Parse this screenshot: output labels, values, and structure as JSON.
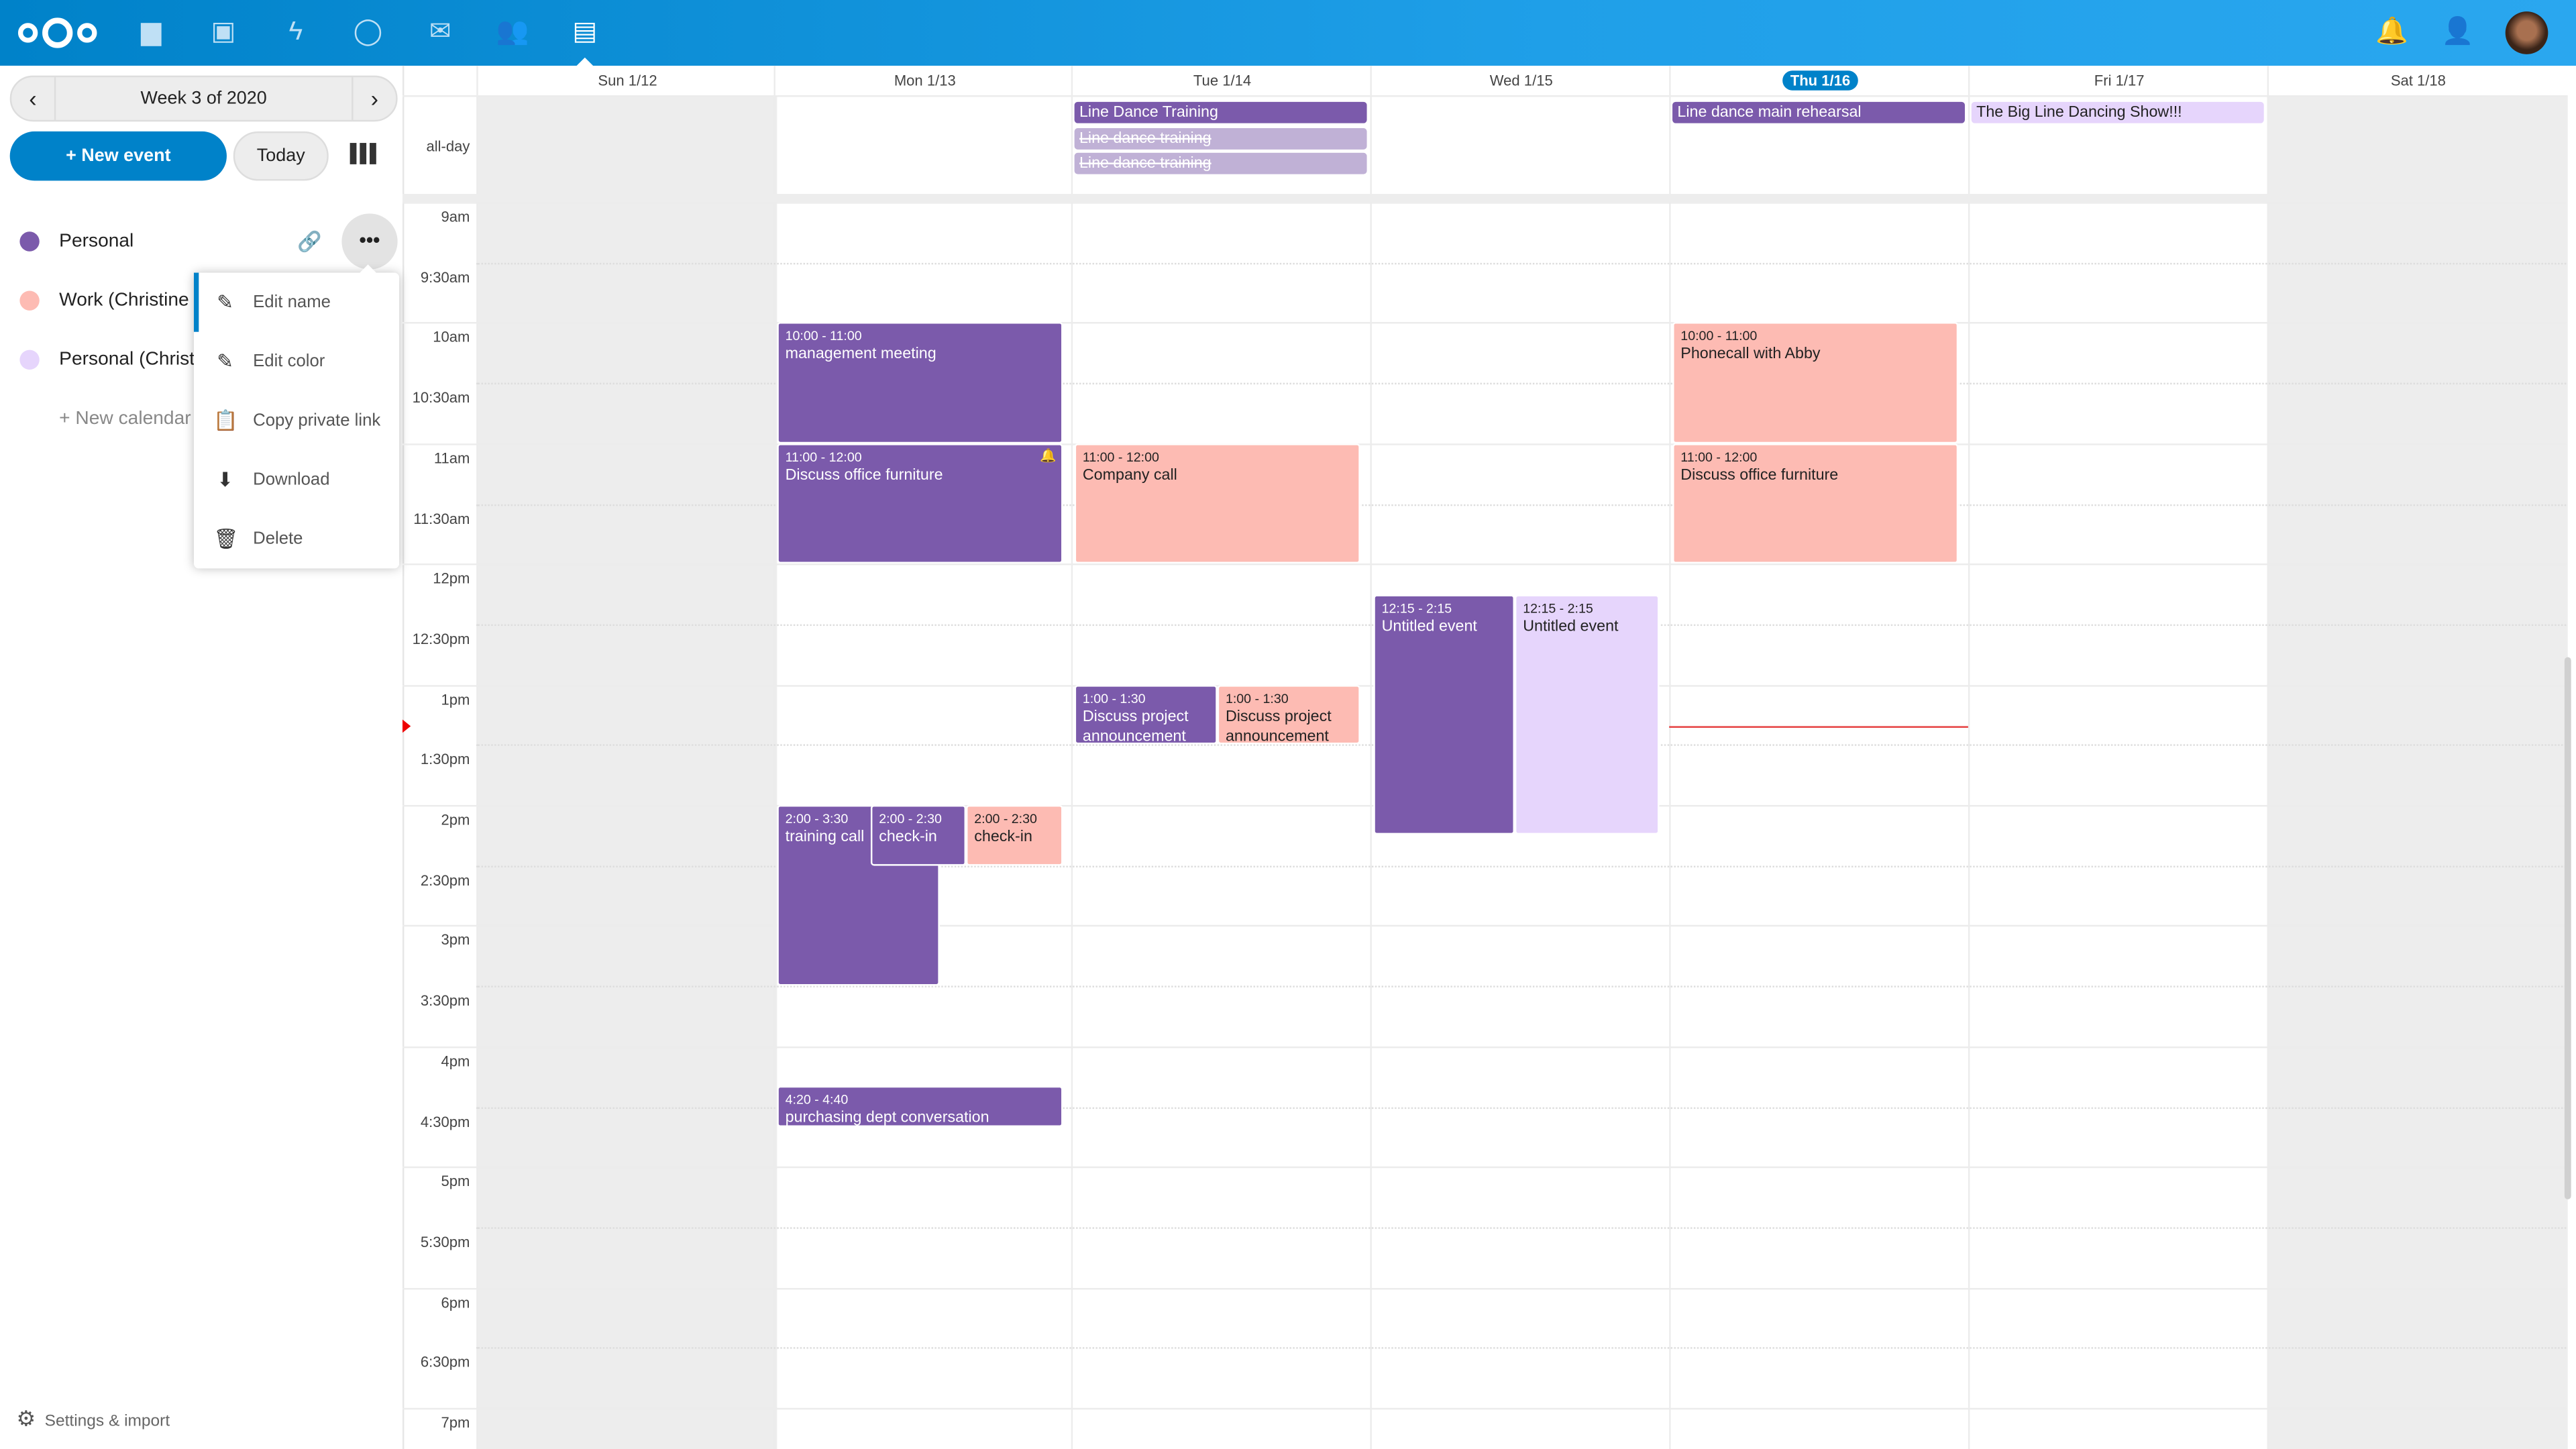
{
  "topbar": {
    "apps": [
      "files-icon",
      "photos-icon",
      "activity-icon",
      "talk-icon",
      "mail-icon",
      "contacts-icon",
      "calendar-icon"
    ],
    "brand_color": "#0082c9"
  },
  "sidebar": {
    "week_label": "Week 3 of 2020",
    "new_event": "+ New event",
    "today": "Today",
    "calendars": [
      {
        "label": "Personal",
        "color": "#7b5aab"
      },
      {
        "label": "Work (Christine Schott)",
        "color": "#fdbbb3"
      },
      {
        "label": "Personal (Christine Schott)",
        "color": "#e6d5fc"
      }
    ],
    "new_calendar": "+ New calendar",
    "settings": "Settings & import"
  },
  "menu": {
    "items": [
      "Edit name",
      "Edit color",
      "Copy private link",
      "Download",
      "Delete"
    ]
  },
  "calendar": {
    "days": [
      "Sun 1/12",
      "Mon 1/13",
      "Tue 1/14",
      "Wed 1/15",
      "Thu 1/16",
      "Fri 1/17",
      "Sat 1/18"
    ],
    "today": "Thu 1/16",
    "allday_label": "all-day",
    "times": [
      "9am",
      "9:30am",
      "10am",
      "10:30am",
      "11am",
      "11:30am",
      "12pm",
      "12:30pm",
      "1pm",
      "1:30pm",
      "2pm",
      "2:30pm",
      "3pm",
      "3:30pm",
      "4pm",
      "4:30pm",
      "5pm",
      "5:30pm",
      "6pm",
      "6:30pm",
      "7pm"
    ],
    "allday": [
      {
        "day": "Tue 1/14",
        "title": "Line Dance Training"
      },
      {
        "day": "Tue 1/14",
        "title": "Line dance training",
        "cancelled": true
      },
      {
        "day": "Tue 1/14",
        "title": "Line dance training",
        "cancelled": true
      },
      {
        "day": "Thu 1/16",
        "title": "Line dance main rehearsal"
      },
      {
        "day": "Fri 1/17",
        "title": "The Big Line Dancing Show!!!"
      }
    ],
    "events": [
      {
        "day": "Mon 1/13",
        "time": "10:00 - 11:00",
        "title": "management meeting"
      },
      {
        "day": "Mon 1/13",
        "time": "11:00 - 12:00",
        "title": "Discuss office furniture",
        "alarm": true
      },
      {
        "day": "Mon 1/13",
        "time": "2:00 - 3:30",
        "title": "training call"
      },
      {
        "day": "Mon 1/13",
        "time": "2:00 - 2:30",
        "title": "check-in"
      },
      {
        "day": "Mon 1/13",
        "time": "2:00 - 2:30",
        "title": "check-in"
      },
      {
        "day": "Mon 1/13",
        "time": "4:20 - 4:40",
        "title": "purchasing dept conversation"
      },
      {
        "day": "Tue 1/14",
        "time": "11:00 - 12:00",
        "title": "Company call"
      },
      {
        "day": "Tue 1/14",
        "time": "1:00 - 1:30",
        "title": "Discuss project announcement"
      },
      {
        "day": "Tue 1/14",
        "time": "1:00 - 1:30",
        "title": "Discuss project announcement"
      },
      {
        "day": "Wed 1/15",
        "time": "12:15 - 2:15",
        "title": "Untitled event"
      },
      {
        "day": "Wed 1/15",
        "time": "12:15 - 2:15",
        "title": "Untitled event"
      },
      {
        "day": "Thu 1/16",
        "time": "10:00 - 11:00",
        "title": "Phonecall with Abby"
      },
      {
        "day": "Thu 1/16",
        "time": "11:00 - 12:00",
        "title": "Discuss office furniture"
      }
    ]
  }
}
